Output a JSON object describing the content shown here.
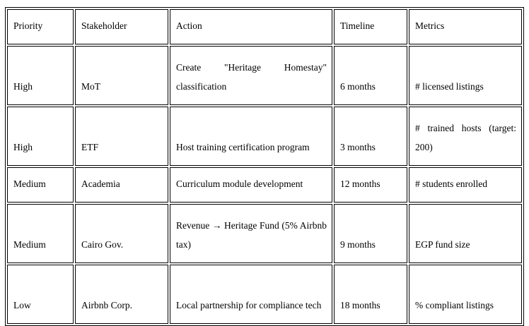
{
  "colors": {
    "border": "#000000",
    "text": "#000000",
    "background": "#ffffff"
  },
  "table": {
    "columns": [
      "Priority",
      "Stakeholder",
      "Action",
      "Timeline",
      "Metrics"
    ],
    "rows": [
      {
        "priority": "High",
        "stakeholder": "MoT",
        "action": "Create \"Heritage Homestay\" classification",
        "timeline": "6 months",
        "metrics": "# licensed listings"
      },
      {
        "priority": "High",
        "stakeholder": "ETF",
        "action": "Host training certification program",
        "timeline": "3 months",
        "metrics": "# trained hosts (target: 200)"
      },
      {
        "priority": "Medium",
        "stakeholder": "Academia",
        "action": "Curriculum module development",
        "timeline": "12 months",
        "metrics": "# students enrolled"
      },
      {
        "priority": "Medium",
        "stakeholder": "Cairo Gov.",
        "action": "Revenue → Heritage Fund (5% Airbnb tax)",
        "timeline": "9 months",
        "metrics": "EGP fund size"
      },
      {
        "priority": "Low",
        "stakeholder": "Airbnb Corp.",
        "action": "Local partnership for compliance tech",
        "timeline": "18 months",
        "metrics": "% compliant listings"
      }
    ]
  }
}
